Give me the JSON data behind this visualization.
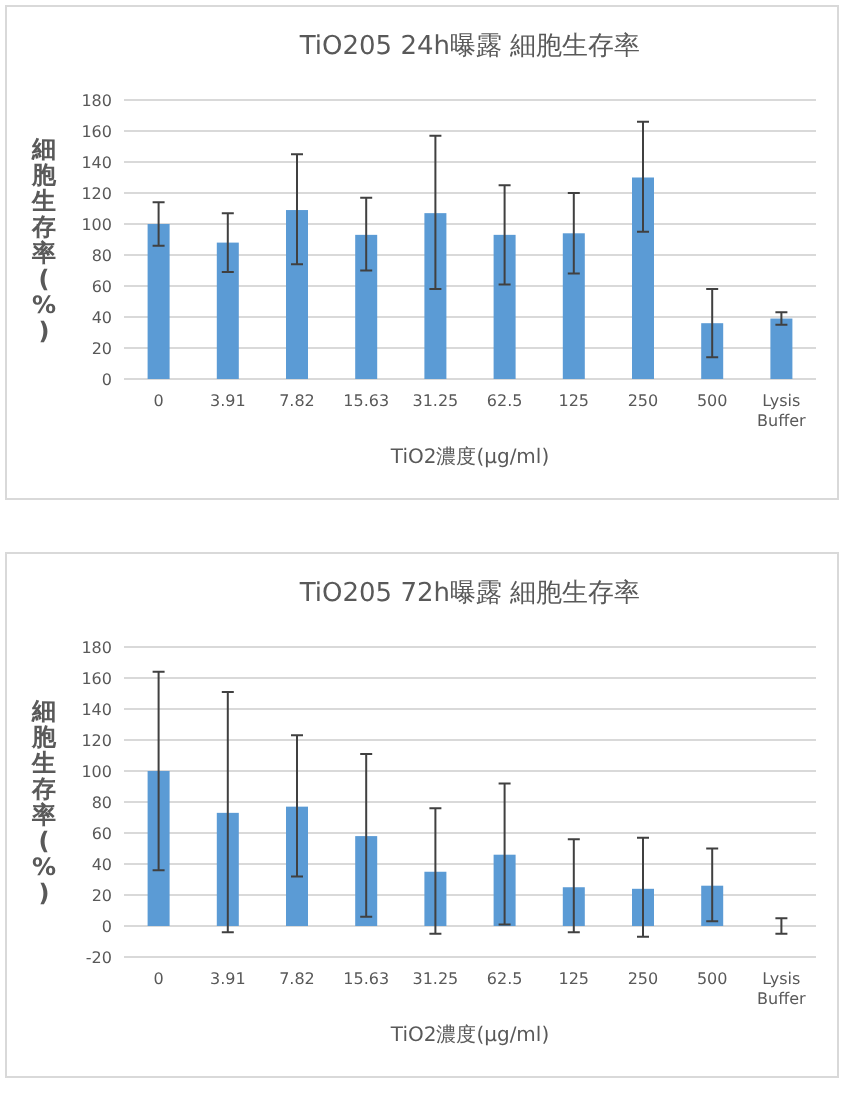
{
  "chart_data": [
    {
      "type": "bar",
      "title": "TiO205  24h曝露  細胞生存率",
      "xlabel": "TiO2濃度(μg/ml)",
      "ylabel": "細胞生存率(%)",
      "categories": [
        "0",
        "3.91",
        "7.82",
        "15.63",
        "31.25",
        "62.5",
        "125",
        "250",
        "500",
        "Lysis Buffer"
      ],
      "values": [
        100,
        88,
        109,
        93,
        107,
        93,
        94,
        130,
        36,
        39
      ],
      "errors": [
        [
          86,
          114
        ],
        [
          69,
          107
        ],
        [
          74,
          145
        ],
        [
          70,
          117
        ],
        [
          58,
          157
        ],
        [
          61,
          125
        ],
        [
          68,
          120
        ],
        [
          95,
          166
        ],
        [
          14,
          58
        ],
        [
          35,
          43
        ]
      ],
      "color": "#5b9bd5",
      "ylim": [
        0,
        180
      ],
      "yticks": [
        0,
        20,
        40,
        60,
        80,
        100,
        120,
        140,
        160,
        180
      ],
      "grid": "y"
    },
    {
      "type": "bar",
      "title": "TiO205  72h曝露  細胞生存率",
      "xlabel": "TiO2濃度(μg/ml)",
      "ylabel": "細胞生存率(%)",
      "categories": [
        "0",
        "3.91",
        "7.82",
        "15.63",
        "31.25",
        "62.5",
        "125",
        "250",
        "500",
        "Lysis Buffer"
      ],
      "values": [
        100,
        73,
        77,
        58,
        35,
        46,
        25,
        24,
        26,
        0
      ],
      "errors": [
        [
          36,
          164
        ],
        [
          -4,
          151
        ],
        [
          32,
          123
        ],
        [
          6,
          111
        ],
        [
          -5,
          76
        ],
        [
          1,
          92
        ],
        [
          -4,
          56
        ],
        [
          -7,
          57
        ],
        [
          3,
          50
        ],
        [
          -5,
          5
        ]
      ],
      "color": "#5b9bd5",
      "ylim": [
        -20,
        180
      ],
      "yticks": [
        -20,
        0,
        20,
        40,
        60,
        80,
        100,
        120,
        140,
        160,
        180
      ],
      "grid": "y"
    }
  ]
}
